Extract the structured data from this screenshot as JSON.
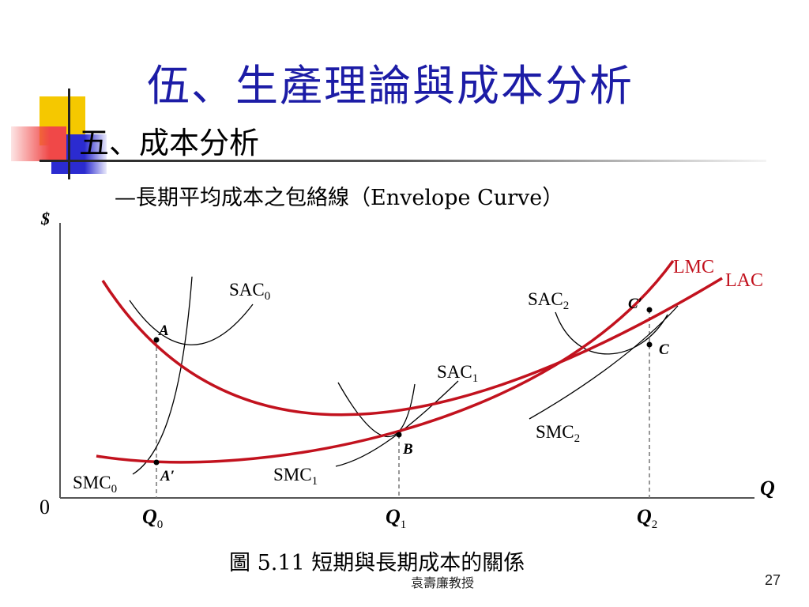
{
  "slide": {
    "title": "伍、生產理論與成本分析",
    "section": "五、成本分析",
    "subtitle": "—長期平均成本之包絡線（Envelope Curve）",
    "caption": "圖 5.11 短期與長期成本的關係",
    "footer": "袁壽廉教授",
    "page_number": "27"
  },
  "figure": {
    "y_axis_label": "$",
    "x_axis_label": "Q",
    "origin_label": "0",
    "x_ticks": [
      {
        "main": "Q",
        "sub": "0"
      },
      {
        "main": "Q",
        "sub": "1"
      },
      {
        "main": "Q",
        "sub": "2"
      }
    ],
    "curves": {
      "lmc": "LMC",
      "lac": "LAC",
      "sac0": {
        "main": "SAC",
        "sub": "0"
      },
      "sac1": {
        "main": "SAC",
        "sub": "1"
      },
      "sac2": {
        "main": "SAC",
        "sub": "2"
      },
      "smc0": {
        "main": "SMC",
        "sub": "0"
      },
      "smc1": {
        "main": "SMC",
        "sub": "1"
      },
      "smc2": {
        "main": "SMC",
        "sub": "2"
      }
    },
    "points": {
      "a": "A",
      "a_prime": "A′",
      "b": "B",
      "c": "C",
      "c_prime": "C′"
    },
    "colors": {
      "long_run_curves": "#c2121e",
      "short_run_curves": "#000000",
      "title": "#1c1ca6"
    }
  }
}
